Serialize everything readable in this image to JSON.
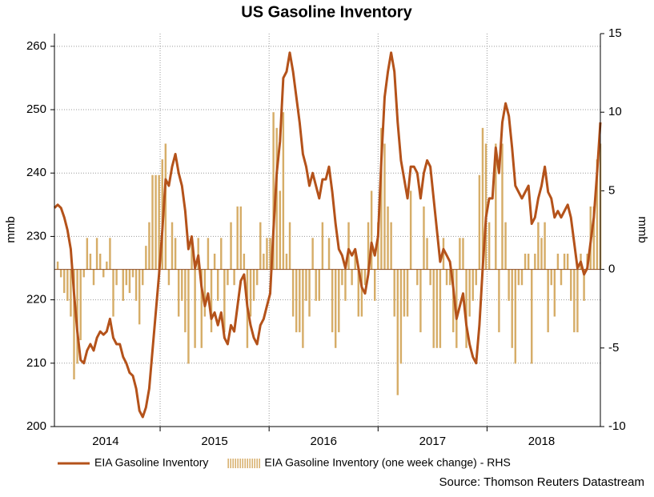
{
  "chart_data": {
    "type": "line-bar",
    "title": "US Gasoline Inventory",
    "ylabel": "mmb",
    "y2label": "mmb",
    "source": "Source: Thomson Reuters Datastream",
    "xlim": [
      2014.03,
      2019.04
    ],
    "xticks": [
      {
        "value": 2014.5,
        "label": "2014"
      },
      {
        "value": 2015.5,
        "label": "2015"
      },
      {
        "value": 2016.5,
        "label": "2016"
      },
      {
        "value": 2017.5,
        "label": "2017"
      },
      {
        "value": 2018.5,
        "label": "2018"
      }
    ],
    "xgrid": [
      2015,
      2016,
      2017,
      2018
    ],
    "ylim": [
      200,
      262
    ],
    "yticks": [
      200,
      210,
      220,
      230,
      240,
      250,
      260
    ],
    "y2lim": [
      -10,
      15
    ],
    "y2ticks": [
      -10,
      -5,
      0,
      5,
      10,
      15
    ],
    "grid": true,
    "x": [
      2014.03,
      2014.06,
      2014.09,
      2014.12,
      2014.15,
      2014.18,
      2014.21,
      2014.24,
      2014.27,
      2014.3,
      2014.33,
      2014.36,
      2014.39,
      2014.42,
      2014.45,
      2014.48,
      2014.51,
      2014.54,
      2014.57,
      2014.6,
      2014.63,
      2014.66,
      2014.69,
      2014.72,
      2014.75,
      2014.78,
      2014.81,
      2014.84,
      2014.87,
      2014.9,
      2014.93,
      2014.96,
      2014.99,
      2015.02,
      2015.05,
      2015.08,
      2015.11,
      2015.14,
      2015.17,
      2015.2,
      2015.23,
      2015.26,
      2015.29,
      2015.32,
      2015.35,
      2015.38,
      2015.41,
      2015.44,
      2015.47,
      2015.5,
      2015.53,
      2015.56,
      2015.59,
      2015.62,
      2015.65,
      2015.68,
      2015.71,
      2015.74,
      2015.77,
      2015.8,
      2015.83,
      2015.86,
      2015.89,
      2015.92,
      2015.95,
      2015.98,
      2016.01,
      2016.04,
      2016.07,
      2016.1,
      2016.13,
      2016.16,
      2016.19,
      2016.22,
      2016.25,
      2016.28,
      2016.31,
      2016.34,
      2016.37,
      2016.4,
      2016.43,
      2016.46,
      2016.49,
      2016.52,
      2016.55,
      2016.58,
      2016.61,
      2016.64,
      2016.67,
      2016.7,
      2016.73,
      2016.76,
      2016.79,
      2016.82,
      2016.85,
      2016.88,
      2016.91,
      2016.94,
      2016.97,
      2017,
      2017.03,
      2017.06,
      2017.09,
      2017.12,
      2017.15,
      2017.18,
      2017.21,
      2017.24,
      2017.27,
      2017.3,
      2017.33,
      2017.36,
      2017.39,
      2017.42,
      2017.45,
      2017.48,
      2017.51,
      2017.54,
      2017.57,
      2017.6,
      2017.63,
      2017.66,
      2017.69,
      2017.72,
      2017.75,
      2017.78,
      2017.81,
      2017.84,
      2017.87,
      2017.9,
      2017.93,
      2017.96,
      2017.99,
      2018.02,
      2018.05,
      2018.08,
      2018.11,
      2018.14,
      2018.17,
      2018.2,
      2018.23,
      2018.26,
      2018.29,
      2018.32,
      2018.35,
      2018.38,
      2018.41,
      2018.44,
      2018.47,
      2018.5,
      2018.53,
      2018.56,
      2018.59,
      2018.62,
      2018.65,
      2018.68,
      2018.71,
      2018.74,
      2018.77,
      2018.8,
      2018.83,
      2018.86,
      2018.89,
      2018.92,
      2018.95,
      2018.98,
      2019.01,
      2019.04
    ],
    "series": [
      {
        "name": "EIA Gasoline Inventory",
        "color": "#b4521a",
        "axis": "y",
        "values": [
          234.5,
          235,
          234.5,
          233,
          231,
          228,
          221,
          215,
          210.5,
          210,
          212,
          213,
          212,
          214,
          215,
          214.5,
          215,
          217,
          214,
          213,
          213,
          211,
          210,
          208.5,
          208,
          206,
          202.5,
          201.5,
          203,
          206,
          212,
          218,
          224,
          231,
          239,
          238,
          241,
          243,
          240,
          238,
          234,
          228,
          230,
          225,
          227,
          222,
          219,
          221,
          217,
          218,
          216,
          218,
          214,
          213,
          216,
          215,
          219,
          223,
          224,
          219,
          216,
          214,
          213,
          216,
          217,
          219,
          221,
          231,
          240,
          245,
          255,
          256,
          259,
          256,
          252,
          248,
          243,
          241,
          238,
          240,
          238,
          236,
          239,
          239,
          241,
          237,
          232,
          228,
          227,
          225,
          228,
          227,
          228,
          225,
          222,
          221,
          224,
          229,
          227,
          230,
          242,
          252,
          256,
          259,
          256,
          248,
          242,
          239,
          236,
          241,
          241,
          240,
          236,
          240,
          242,
          241,
          236,
          231,
          226,
          228,
          227,
          226,
          222,
          217,
          219,
          221,
          216,
          213,
          211,
          210,
          216,
          225,
          233,
          236,
          236,
          244,
          240,
          248,
          251,
          249,
          244,
          238,
          237,
          236,
          237,
          238,
          232,
          233,
          236,
          238,
          241,
          237,
          236,
          233,
          234,
          233,
          234,
          235,
          233,
          229,
          225,
          226,
          224,
          225,
          229,
          233,
          240,
          248
        ]
      },
      {
        "name": "EIA Gasoline Inventory (one week change) - RHS",
        "color": "#d6ad68",
        "axis": "y2",
        "values": [
          0,
          0.5,
          -0.5,
          -1.5,
          -2,
          -3,
          -7,
          -6,
          -4.5,
          -0.5,
          2,
          1,
          -1,
          2,
          1,
          -0.5,
          0.5,
          2,
          -3,
          -1,
          0,
          -2,
          -1,
          -1.5,
          -0.5,
          -2,
          -3.5,
          -1,
          1.5,
          3,
          6,
          6,
          6,
          7,
          8,
          -1,
          3,
          2,
          -3,
          -2,
          -4,
          -6,
          2,
          -5,
          2,
          -5,
          -3,
          2,
          -4,
          1,
          -2,
          2,
          -4,
          -1,
          3,
          -1,
          4,
          4,
          1,
          -5,
          -3,
          -2,
          -1,
          3,
          1,
          2,
          2,
          10,
          9,
          5,
          10,
          1,
          3,
          -3,
          -4,
          -4,
          -5,
          -2,
          -3,
          2,
          -2,
          -2,
          3,
          0,
          2,
          -4,
          -5,
          -4,
          -1,
          -2,
          3,
          -1,
          1,
          -3,
          -3,
          -1,
          3,
          5,
          -2,
          3,
          9,
          8,
          4,
          3,
          -3,
          -8,
          -6,
          -3,
          -3,
          5,
          0,
          -1,
          -4,
          4,
          2,
          -1,
          -5,
          -5,
          -5,
          2,
          -1,
          -1,
          -4,
          -5,
          2,
          2,
          -5,
          -3,
          -2,
          -1,
          6,
          9,
          8,
          3,
          0,
          8,
          -4,
          8,
          3,
          -2,
          -5,
          -6,
          -1,
          -1,
          1,
          1,
          -6,
          1,
          3,
          2,
          3,
          -4,
          -1,
          -3,
          1,
          -1,
          1,
          1,
          -2,
          -4,
          -4,
          1,
          -2,
          1,
          4,
          4,
          7,
          8
        ]
      }
    ]
  }
}
